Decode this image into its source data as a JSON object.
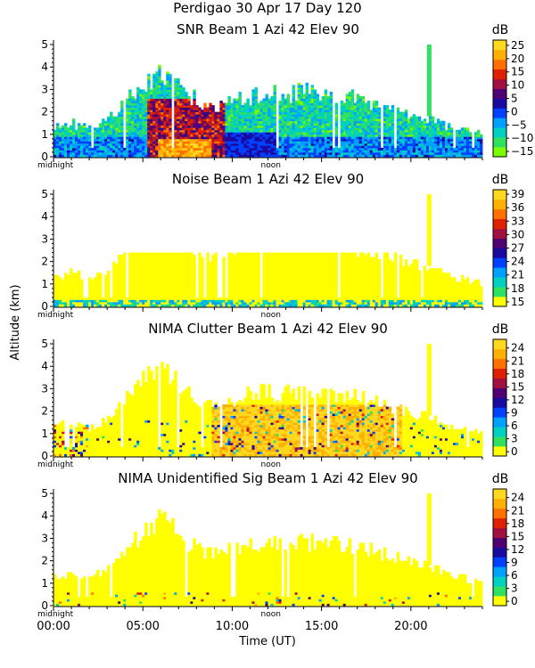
{
  "header": {
    "title_line1": "Perdigao   30 Apr 17 Day 120"
  },
  "chart_data": [
    {
      "type": "heatmap",
      "title": "SNR Beam 1 Azi   42 Elev 90",
      "ylabel": "Altitude (km)",
      "xlabel": "Time (UT)",
      "ylim": [
        0,
        5.2
      ],
      "xlim": [
        0,
        24
      ],
      "yticks": [
        "0",
        "1",
        "2",
        "3",
        "4",
        "5"
      ],
      "day_markers": [
        "midnight",
        "noon"
      ],
      "colorbar_unit": "dB",
      "colorbar_ticks": [
        "25",
        "20",
        "15",
        "10",
        "5",
        "0",
        "−5",
        "−10",
        "−15"
      ],
      "colorbar_range": [
        -17,
        27
      ],
      "colormap": [
        "#7cfc00",
        "#30e060",
        "#00d0c0",
        "#00a0ff",
        "#0040ff",
        "#1a0aa0",
        "#500070",
        "#a01040",
        "#e02000",
        "#ff7000",
        "#ffb000",
        "#ffd820"
      ]
    },
    {
      "type": "heatmap",
      "title": "Noise Beam 1 Azi   42 Elev 90",
      "ylabel": "Altitude (km)",
      "xlabel": "Time (UT)",
      "ylim": [
        0,
        5.2
      ],
      "xlim": [
        0,
        24
      ],
      "yticks": [
        "0",
        "1",
        "2",
        "3",
        "4",
        "5"
      ],
      "day_markers": [
        "midnight",
        "noon"
      ],
      "colorbar_unit": "dB",
      "colorbar_ticks": [
        "39",
        "36",
        "33",
        "30",
        "27",
        "24",
        "21",
        "18",
        "15"
      ],
      "colorbar_range": [
        14,
        40
      ],
      "colormap": [
        "#ffff00",
        "#30e060",
        "#00d0c0",
        "#00a0ff",
        "#0040ff",
        "#1a0aa0",
        "#500070",
        "#a01040",
        "#e02000",
        "#ff7000",
        "#ffb000",
        "#ffd820"
      ]
    },
    {
      "type": "heatmap",
      "title": "NIMA Clutter Beam 1 Azi   42 Elev 90",
      "ylabel": "Altitude (km)",
      "xlabel": "Time (UT)",
      "ylim": [
        0,
        5.2
      ],
      "xlim": [
        0,
        24
      ],
      "yticks": [
        "0",
        "1",
        "2",
        "3",
        "4",
        "5"
      ],
      "day_markers": [
        "midnight",
        "noon"
      ],
      "colorbar_unit": "dB",
      "colorbar_ticks": [
        "24",
        "21",
        "18",
        "15",
        "12",
        "9",
        "6",
        "3",
        "0"
      ],
      "colorbar_range": [
        -1,
        26
      ],
      "colormap": [
        "#ffff00",
        "#30e060",
        "#00d0c0",
        "#00a0ff",
        "#0040ff",
        "#1a0aa0",
        "#500070",
        "#a01040",
        "#e02000",
        "#ff7000",
        "#ffb000",
        "#ffd820"
      ]
    },
    {
      "type": "heatmap",
      "title": "NIMA Unidentified Sig Beam 1 Azi   42 Elev 90",
      "ylabel": "Altitude (km)",
      "xlabel": "Time (UT)",
      "ylim": [
        0,
        5.2
      ],
      "xlim": [
        0,
        24
      ],
      "xticks": [
        "00:00",
        "05:00",
        "10:00",
        "15:00",
        "20:00"
      ],
      "yticks": [
        "0",
        "1",
        "2",
        "3",
        "4",
        "5"
      ],
      "day_markers": [
        "midnight",
        "noon"
      ],
      "colorbar_unit": "dB",
      "colorbar_ticks": [
        "24",
        "21",
        "18",
        "15",
        "12",
        "9",
        "6",
        "3",
        "0"
      ],
      "colorbar_range": [
        -1,
        26
      ],
      "colormap": [
        "#ffff00",
        "#30e060",
        "#00d0c0",
        "#00a0ff",
        "#0040ff",
        "#1a0aa0",
        "#500070",
        "#a01040",
        "#e02000",
        "#ff7000",
        "#ffb000",
        "#ffd820"
      ]
    }
  ]
}
